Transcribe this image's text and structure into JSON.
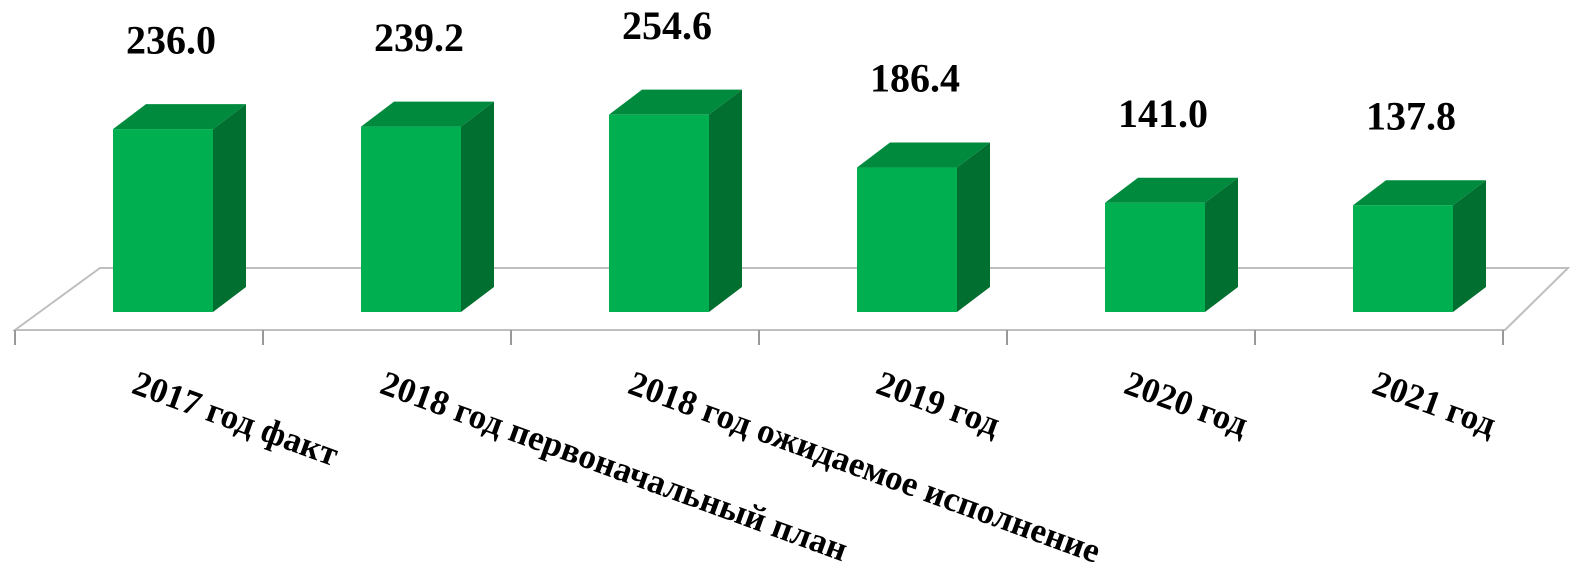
{
  "chart_data": {
    "type": "bar3d",
    "categories": [
      "2017 год факт",
      "2018 год первоначальный план",
      "2018 год ожидаемое исполнение",
      "2019 год",
      "2020 год",
      "2021 год"
    ],
    "values": [
      236.0,
      239.2,
      254.6,
      186.4,
      141.0,
      137.8
    ],
    "value_labels": [
      "236.0",
      "239.2",
      "254.6",
      "186.4",
      "141.0",
      "137.8"
    ],
    "color": "#00b050"
  }
}
